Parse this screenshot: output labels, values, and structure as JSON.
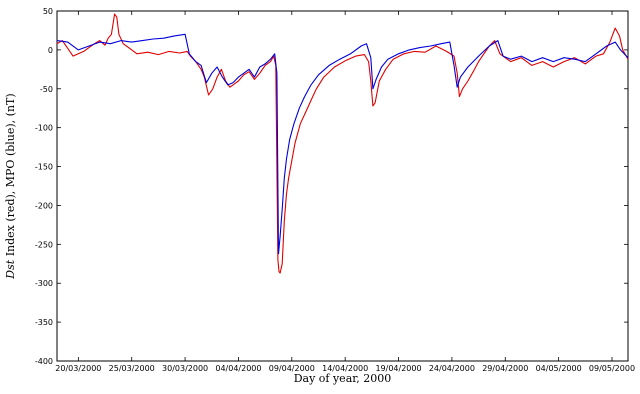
{
  "chart_data": {
    "type": "line",
    "title": "",
    "xlabel": "Day of year, 2000",
    "ylabel": "Dst Index (red), MPO (blue), (nT)",
    "ylabel_parts": {
      "dst": "Dst",
      "rest": " Index (red), MPO (blue), (nT)"
    },
    "ylim": [
      -400,
      50
    ],
    "xlim": [
      78,
      131.5
    ],
    "grid": false,
    "yticks": [
      50,
      0,
      -50,
      -100,
      -150,
      -200,
      -250,
      -300,
      -350,
      -400
    ],
    "xticks": [
      {
        "day": 80,
        "label": "20/03/2000"
      },
      {
        "day": 85,
        "label": "25/03/2000"
      },
      {
        "day": 90,
        "label": "30/03/2000"
      },
      {
        "day": 95,
        "label": "04/04/2000"
      },
      {
        "day": 100,
        "label": "09/04/2000"
      },
      {
        "day": 105,
        "label": "14/04/2000"
      },
      {
        "day": 110,
        "label": "19/04/2000"
      },
      {
        "day": 115,
        "label": "24/04/2000"
      },
      {
        "day": 120,
        "label": "29/04/2000"
      },
      {
        "day": 125,
        "label": "04/05/2000"
      },
      {
        "day": 130,
        "label": "09/05/2000"
      }
    ],
    "series": [
      {
        "color": "#e00000",
        "points": [
          [
            78,
            8
          ],
          [
            78.5,
            12
          ],
          [
            79,
            2
          ],
          [
            79.5,
            -8
          ],
          [
            80,
            -5
          ],
          [
            80.5,
            -2
          ],
          [
            81,
            3
          ],
          [
            81.5,
            8
          ],
          [
            82,
            12
          ],
          [
            82.5,
            6
          ],
          [
            82.8,
            15
          ],
          [
            83.1,
            20
          ],
          [
            83.4,
            46
          ],
          [
            83.6,
            42
          ],
          [
            83.8,
            20
          ],
          [
            84.2,
            8
          ],
          [
            84.8,
            2
          ],
          [
            85.5,
            -5
          ],
          [
            86.5,
            -3
          ],
          [
            87.5,
            -6
          ],
          [
            88.5,
            -2
          ],
          [
            89.5,
            -4
          ],
          [
            90.2,
            -2
          ],
          [
            90.5,
            -8
          ],
          [
            91,
            -15
          ],
          [
            91.5,
            -25
          ],
          [
            91.8,
            -35
          ],
          [
            92.2,
            -58
          ],
          [
            92.6,
            -50
          ],
          [
            93,
            -35
          ],
          [
            93.4,
            -25
          ],
          [
            93.8,
            -40
          ],
          [
            94.2,
            -48
          ],
          [
            94.6,
            -44
          ],
          [
            95,
            -40
          ],
          [
            95.5,
            -32
          ],
          [
            96,
            -28
          ],
          [
            96.5,
            -38
          ],
          [
            97,
            -30
          ],
          [
            97.5,
            -20
          ],
          [
            98,
            -15
          ],
          [
            98.3,
            -8
          ],
          [
            98.5,
            -20
          ],
          [
            98.7,
            -270
          ],
          [
            98.8,
            -285
          ],
          [
            98.9,
            -287
          ],
          [
            99.1,
            -275
          ],
          [
            99.3,
            -220
          ],
          [
            99.5,
            -185
          ],
          [
            99.7,
            -165
          ],
          [
            99.9,
            -150
          ],
          [
            100.3,
            -120
          ],
          [
            100.8,
            -95
          ],
          [
            101.3,
            -80
          ],
          [
            101.8,
            -65
          ],
          [
            102.3,
            -50
          ],
          [
            103,
            -35
          ],
          [
            104,
            -22
          ],
          [
            105,
            -14
          ],
          [
            106,
            -8
          ],
          [
            106.8,
            -6
          ],
          [
            107.2,
            -15
          ],
          [
            107.4,
            -40
          ],
          [
            107.6,
            -72
          ],
          [
            107.8,
            -68
          ],
          [
            108.2,
            -40
          ],
          [
            108.8,
            -25
          ],
          [
            109.5,
            -12
          ],
          [
            110.5,
            -5
          ],
          [
            111.5,
            -2
          ],
          [
            112.5,
            -3
          ],
          [
            113.5,
            5
          ],
          [
            114.5,
            -2
          ],
          [
            115.2,
            -8
          ],
          [
            115.5,
            -30
          ],
          [
            115.7,
            -60
          ],
          [
            116,
            -50
          ],
          [
            116.5,
            -40
          ],
          [
            117,
            -28
          ],
          [
            117.5,
            -15
          ],
          [
            118,
            -5
          ],
          [
            118.5,
            5
          ],
          [
            119,
            12
          ],
          [
            119.5,
            -5
          ],
          [
            120.5,
            -15
          ],
          [
            121.5,
            -10
          ],
          [
            122.5,
            -20
          ],
          [
            123.5,
            -15
          ],
          [
            124.5,
            -22
          ],
          [
            125.5,
            -15
          ],
          [
            126.5,
            -10
          ],
          [
            127.5,
            -18
          ],
          [
            128.5,
            -8
          ],
          [
            129.2,
            -5
          ],
          [
            129.8,
            10
          ],
          [
            130.3,
            28
          ],
          [
            130.7,
            18
          ],
          [
            131,
            0
          ],
          [
            131.5,
            -12
          ]
        ]
      },
      {
        "color": "#0000dd",
        "points": [
          [
            78,
            12
          ],
          [
            79,
            10
          ],
          [
            80,
            0
          ],
          [
            81,
            5
          ],
          [
            82,
            10
          ],
          [
            83,
            8
          ],
          [
            84,
            12
          ],
          [
            85,
            10
          ],
          [
            86,
            12
          ],
          [
            87,
            14
          ],
          [
            88,
            15
          ],
          [
            89,
            18
          ],
          [
            90,
            20
          ],
          [
            90.4,
            -5
          ],
          [
            91,
            -15
          ],
          [
            91.5,
            -20
          ],
          [
            92,
            -42
          ],
          [
            92.5,
            -30
          ],
          [
            93,
            -22
          ],
          [
            93.5,
            -35
          ],
          [
            94,
            -45
          ],
          [
            94.5,
            -42
          ],
          [
            95,
            -35
          ],
          [
            95.5,
            -30
          ],
          [
            96,
            -25
          ],
          [
            96.5,
            -35
          ],
          [
            97,
            -22
          ],
          [
            97.5,
            -18
          ],
          [
            98,
            -12
          ],
          [
            98.4,
            -5
          ],
          [
            98.6,
            -30
          ],
          [
            98.75,
            -262
          ],
          [
            98.9,
            -240
          ],
          [
            99.1,
            -205
          ],
          [
            99.3,
            -165
          ],
          [
            99.5,
            -140
          ],
          [
            99.8,
            -115
          ],
          [
            100.2,
            -95
          ],
          [
            100.7,
            -75
          ],
          [
            101.2,
            -60
          ],
          [
            101.8,
            -45
          ],
          [
            102.5,
            -32
          ],
          [
            103.5,
            -20
          ],
          [
            104.5,
            -12
          ],
          [
            105.5,
            -5
          ],
          [
            106.5,
            5
          ],
          [
            107,
            8
          ],
          [
            107.4,
            -10
          ],
          [
            107.6,
            -50
          ],
          [
            107.9,
            -38
          ],
          [
            108.4,
            -22
          ],
          [
            109,
            -12
          ],
          [
            110,
            -5
          ],
          [
            111,
            0
          ],
          [
            112,
            3
          ],
          [
            113,
            5
          ],
          [
            114,
            8
          ],
          [
            114.8,
            10
          ],
          [
            115.2,
            -20
          ],
          [
            115.5,
            -48
          ],
          [
            115.8,
            -35
          ],
          [
            116.5,
            -22
          ],
          [
            117.5,
            -8
          ],
          [
            118.5,
            5
          ],
          [
            119.3,
            12
          ],
          [
            119.8,
            -8
          ],
          [
            120.5,
            -12
          ],
          [
            121.5,
            -8
          ],
          [
            122.5,
            -15
          ],
          [
            123.5,
            -10
          ],
          [
            124.5,
            -15
          ],
          [
            125.5,
            -10
          ],
          [
            126.5,
            -12
          ],
          [
            127.5,
            -15
          ],
          [
            128.5,
            -5
          ],
          [
            129.5,
            5
          ],
          [
            130.3,
            10
          ],
          [
            130.8,
            0
          ],
          [
            131.5,
            -10
          ]
        ]
      }
    ]
  }
}
